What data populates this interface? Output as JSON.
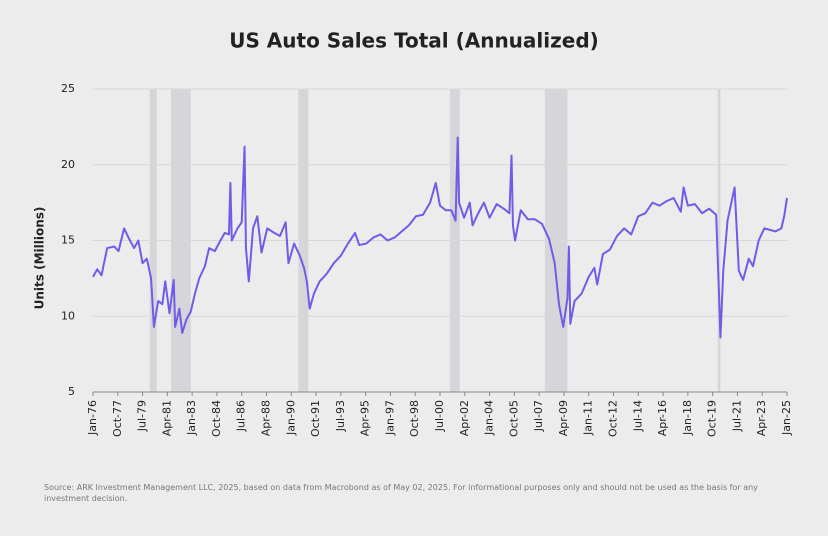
{
  "chart_data": {
    "type": "line",
    "title": "US Auto Sales Total (Annualized)",
    "ylabel": "Units (Millions)",
    "source": "Source: ARK Investment Management LLC, 2025, based on data from Macrobond as of May 02, 2025. For informational purposes only and should not be used as the basis for any investment decision.",
    "xlim": [
      1976.0,
      2025.0
    ],
    "ylim": [
      5,
      25
    ],
    "yticks": [
      5,
      10,
      15,
      20,
      25
    ],
    "grid": true,
    "xticks": [
      {
        "value": 1976.0,
        "label": "Jan-76"
      },
      {
        "value": 1977.75,
        "label": "Oct-77"
      },
      {
        "value": 1979.5,
        "label": "Jul-79"
      },
      {
        "value": 1981.25,
        "label": "Apr-81"
      },
      {
        "value": 1983.0,
        "label": "Jan-83"
      },
      {
        "value": 1984.75,
        "label": "Oct-84"
      },
      {
        "value": 1986.5,
        "label": "Jul-86"
      },
      {
        "value": 1988.25,
        "label": "Apr-88"
      },
      {
        "value": 1990.0,
        "label": "Jan-90"
      },
      {
        "value": 1991.75,
        "label": "Oct-91"
      },
      {
        "value": 1993.5,
        "label": "Jul-93"
      },
      {
        "value": 1995.25,
        "label": "Apr-95"
      },
      {
        "value": 1997.0,
        "label": "Jan-97"
      },
      {
        "value": 1998.75,
        "label": "Oct-98"
      },
      {
        "value": 2000.5,
        "label": "Jul-00"
      },
      {
        "value": 2002.25,
        "label": "Apr-02"
      },
      {
        "value": 2004.0,
        "label": "Jan-04"
      },
      {
        "value": 2005.75,
        "label": "Oct-05"
      },
      {
        "value": 2007.5,
        "label": "Jul-07"
      },
      {
        "value": 2009.25,
        "label": "Apr-09"
      },
      {
        "value": 2011.0,
        "label": "Jan-11"
      },
      {
        "value": 2012.75,
        "label": "Oct-12"
      },
      {
        "value": 2014.5,
        "label": "Jul-14"
      },
      {
        "value": 2016.25,
        "label": "Apr-16"
      },
      {
        "value": 2018.0,
        "label": "Jan-18"
      },
      {
        "value": 2019.75,
        "label": "Oct-19"
      },
      {
        "value": 2021.5,
        "label": "Jul-21"
      },
      {
        "value": 2023.25,
        "label": "Apr-23"
      },
      {
        "value": 2025.0,
        "label": "Jan-25"
      }
    ],
    "recessions": {
      "color": "#d6d6da",
      "ranges": [
        [
          1980.0,
          1980.5
        ],
        [
          1981.5,
          1982.9
        ],
        [
          1990.5,
          1991.2
        ],
        [
          2001.2,
          2001.9
        ],
        [
          2007.9,
          2009.5
        ],
        [
          2020.1,
          2020.3
        ]
      ]
    },
    "series": [
      {
        "name": "US Auto Sales",
        "color": "#6f5ce8",
        "x": [
          1976.0,
          1976.3,
          1976.6,
          1977.0,
          1977.5,
          1977.8,
          1978.2,
          1978.5,
          1978.9,
          1979.2,
          1979.5,
          1979.8,
          1980.1,
          1980.3,
          1980.6,
          1980.9,
          1981.1,
          1981.4,
          1981.7,
          1981.8,
          1982.1,
          1982.3,
          1982.6,
          1982.9,
          1983.2,
          1983.5,
          1983.9,
          1984.2,
          1984.6,
          1985.0,
          1985.3,
          1985.6,
          1985.7,
          1985.8,
          1986.2,
          1986.5,
          1986.7,
          1986.8,
          1987.0,
          1987.3,
          1987.6,
          1987.9,
          1988.3,
          1988.8,
          1989.2,
          1989.6,
          1989.8,
          1990.2,
          1990.6,
          1990.9,
          1991.1,
          1991.3,
          1991.6,
          1992.0,
          1992.5,
          1993.0,
          1993.5,
          1994.0,
          1994.5,
          1994.8,
          1995.3,
          1995.8,
          1996.3,
          1996.8,
          1997.3,
          1997.8,
          1998.3,
          1998.8,
          1999.3,
          1999.8,
          2000.2,
          2000.5,
          2000.9,
          2001.3,
          2001.6,
          2001.75,
          2001.85,
          2002.2,
          2002.6,
          2002.8,
          2003.2,
          2003.6,
          2004.0,
          2004.5,
          2005.0,
          2005.4,
          2005.55,
          2005.65,
          2005.8,
          2006.2,
          2006.7,
          2007.2,
          2007.7,
          2008.2,
          2008.6,
          2008.9,
          2009.2,
          2009.5,
          2009.6,
          2009.7,
          2010.0,
          2010.5,
          2011.0,
          2011.4,
          2011.6,
          2012.0,
          2012.5,
          2013.0,
          2013.5,
          2014.0,
          2014.5,
          2015.0,
          2015.5,
          2016.0,
          2016.5,
          2017.0,
          2017.5,
          2017.7,
          2018.0,
          2018.5,
          2019.0,
          2019.5,
          2020.0,
          2020.2,
          2020.3,
          2020.5,
          2020.8,
          2021.3,
          2021.6,
          2021.9,
          2022.3,
          2022.6,
          2023.0,
          2023.4,
          2023.8,
          2024.2,
          2024.6,
          2024.8,
          2025.0
        ],
        "values": [
          12.6,
          13.1,
          12.7,
          14.5,
          14.6,
          14.3,
          15.8,
          15.2,
          14.5,
          15.0,
          13.5,
          13.8,
          12.5,
          9.3,
          11.0,
          10.8,
          12.3,
          10.2,
          12.4,
          9.3,
          10.5,
          8.9,
          9.8,
          10.3,
          11.5,
          12.5,
          13.3,
          14.5,
          14.3,
          15.0,
          15.5,
          15.4,
          18.8,
          15.0,
          15.8,
          16.2,
          21.2,
          14.5,
          12.3,
          15.8,
          16.6,
          14.2,
          15.8,
          15.5,
          15.3,
          16.2,
          13.5,
          14.8,
          14.0,
          13.2,
          12.3,
          10.5,
          11.5,
          12.3,
          12.8,
          13.5,
          14.0,
          14.8,
          15.5,
          14.7,
          14.8,
          15.2,
          15.4,
          15.0,
          15.2,
          15.6,
          16.0,
          16.6,
          16.7,
          17.5,
          18.8,
          17.3,
          17.0,
          17.0,
          16.3,
          21.8,
          17.5,
          16.5,
          17.5,
          16.0,
          16.8,
          17.5,
          16.5,
          17.4,
          17.1,
          16.8,
          20.6,
          16.0,
          15.0,
          17.0,
          16.4,
          16.4,
          16.1,
          15.1,
          13.5,
          10.8,
          9.3,
          11.2,
          14.6,
          9.5,
          11.0,
          11.5,
          12.6,
          13.2,
          12.1,
          14.1,
          14.4,
          15.3,
          15.8,
          15.4,
          16.6,
          16.8,
          17.5,
          17.3,
          17.6,
          17.8,
          16.9,
          18.5,
          17.3,
          17.4,
          16.8,
          17.1,
          16.7,
          11.4,
          8.6,
          13.0,
          16.3,
          18.5,
          13.0,
          12.4,
          13.8,
          13.3,
          15.0,
          15.8,
          15.7,
          15.6,
          15.8,
          16.6,
          17.8
        ]
      }
    ]
  }
}
